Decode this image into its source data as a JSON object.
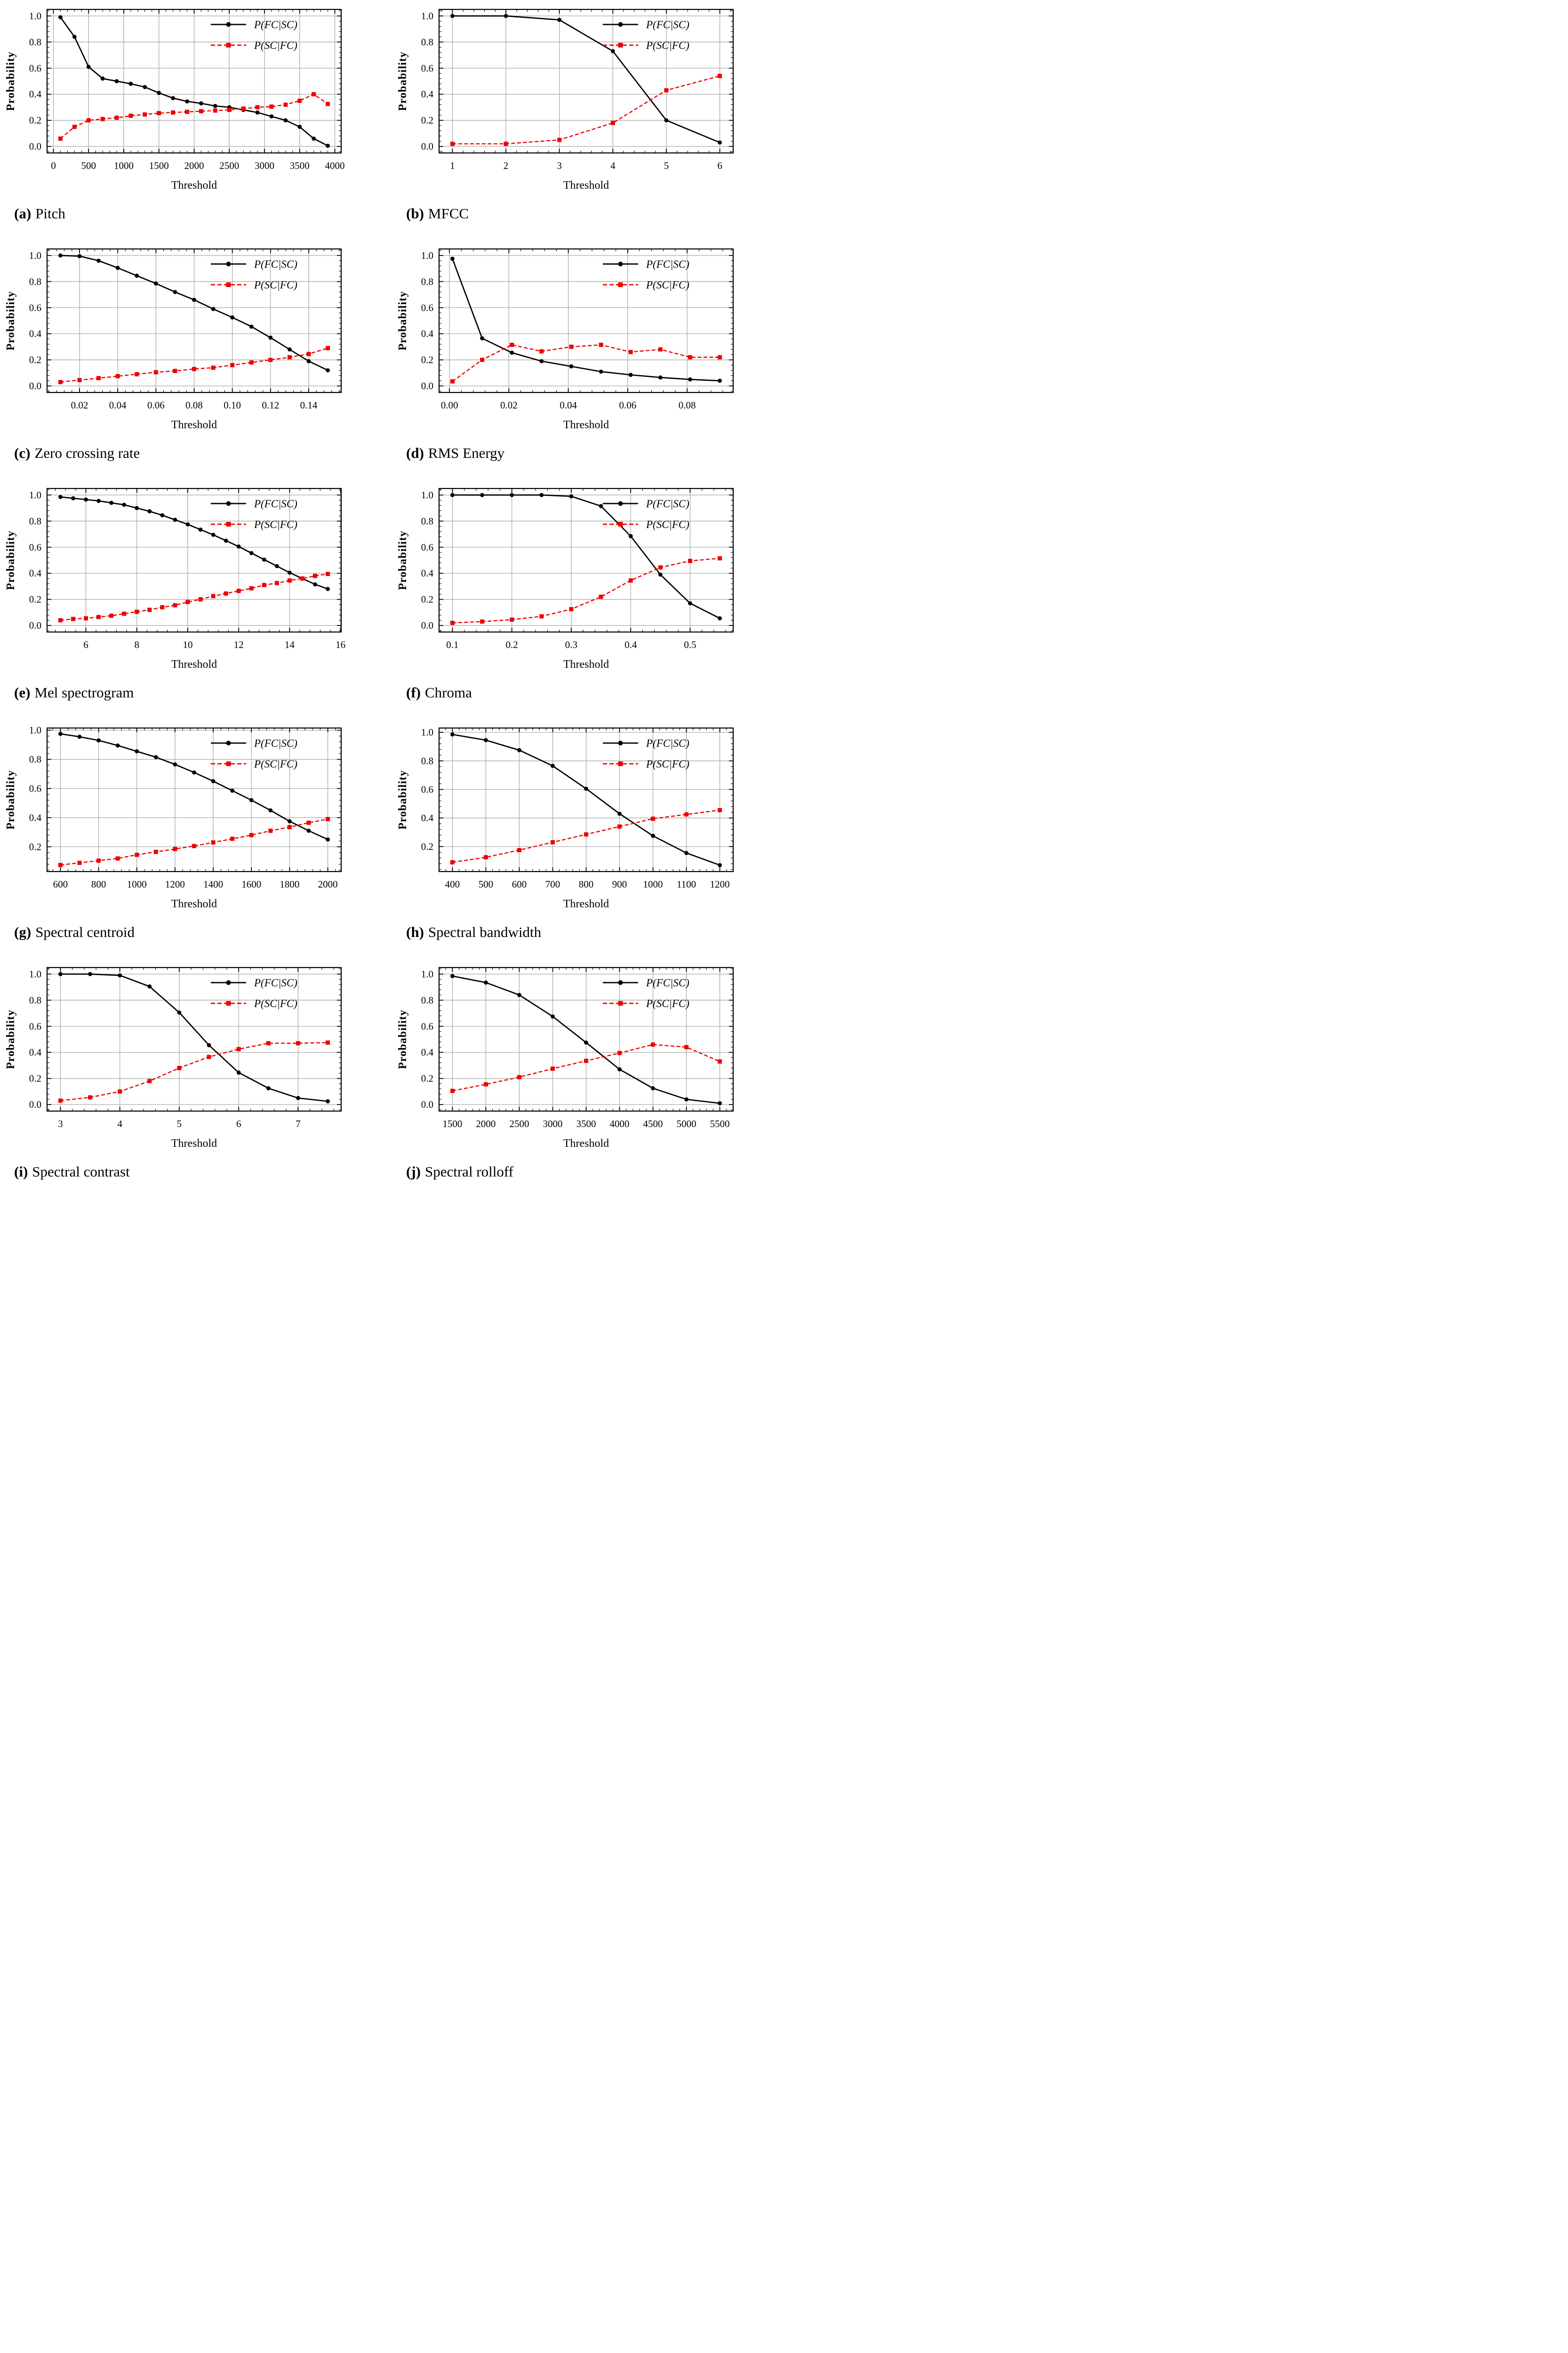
{
  "axes": {
    "xlabel": "Threshold",
    "ylabel": "Probability"
  },
  "legend": {
    "position": "top-right",
    "items": [
      {
        "label": "P(FC|SC)",
        "color": "#000000",
        "line": "solid",
        "marker": "circle"
      },
      {
        "label": "P(SC|FC)",
        "color": "#ee0000",
        "line": "dashed",
        "marker": "square"
      }
    ]
  },
  "style": {
    "grid_color": "#aaaaaa",
    "spine_color": "#000000",
    "background": "#ffffff"
  },
  "chart_data": [
    {
      "panel": "a",
      "caption": "Pitch",
      "type": "line",
      "xlabel": "Threshold",
      "ylabel": "Probability",
      "grid": true,
      "xlim": [
        -90,
        4090
      ],
      "ylim": [
        -0.05,
        1.05
      ],
      "x": [
        100,
        300,
        500,
        700,
        900,
        1100,
        1300,
        1500,
        1700,
        1900,
        2100,
        2300,
        2500,
        2700,
        2900,
        3100,
        3300,
        3500,
        3700,
        3900
      ],
      "series": [
        {
          "name": "P(FC|SC)",
          "values": [
            0.99,
            0.84,
            0.61,
            0.52,
            0.5,
            0.48,
            0.455,
            0.41,
            0.37,
            0.345,
            0.33,
            0.31,
            0.3,
            0.28,
            0.26,
            0.23,
            0.2,
            0.15,
            0.06,
            0.005
          ]
        },
        {
          "name": "P(SC|FC)",
          "values": [
            0.06,
            0.15,
            0.2,
            0.21,
            0.22,
            0.235,
            0.245,
            0.255,
            0.26,
            0.265,
            0.27,
            0.275,
            0.28,
            0.29,
            0.3,
            0.305,
            0.32,
            0.35,
            0.4,
            0.325
          ]
        }
      ],
      "xticks": {
        "values": [
          0,
          500,
          1000,
          1500,
          2000,
          2500,
          3000,
          3500,
          4000
        ],
        "labels": [
          "0",
          "500",
          "1000",
          "1500",
          "2000",
          "2500",
          "3000",
          "3500",
          "4000"
        ]
      },
      "yticks": {
        "values": [
          0,
          0.2,
          0.4,
          0.6,
          0.8,
          1.0
        ],
        "labels": [
          "0.0",
          "0.2",
          "0.4",
          "0.6",
          "0.8",
          "1.0"
        ]
      }
    },
    {
      "panel": "b",
      "caption": "MFCC",
      "type": "line",
      "xlabel": "Threshold",
      "ylabel": "Probability",
      "grid": true,
      "xlim": [
        0.75,
        6.25
      ],
      "ylim": [
        -0.05,
        1.05
      ],
      "x": [
        1,
        2,
        3,
        4,
        5,
        6
      ],
      "series": [
        {
          "name": "P(FC|SC)",
          "values": [
            1.0,
            1.0,
            0.97,
            0.73,
            0.2,
            0.03
          ]
        },
        {
          "name": "P(SC|FC)",
          "values": [
            0.02,
            0.02,
            0.05,
            0.18,
            0.43,
            0.54
          ]
        }
      ],
      "xticks": {
        "values": [
          1,
          2,
          3,
          4,
          5,
          6
        ],
        "labels": [
          "1",
          "2",
          "3",
          "4",
          "5",
          "6"
        ]
      },
      "yticks": {
        "values": [
          0,
          0.2,
          0.4,
          0.6,
          0.8,
          1.0
        ],
        "labels": [
          "0.0",
          "0.2",
          "0.4",
          "0.6",
          "0.8",
          "1.0"
        ]
      }
    },
    {
      "panel": "c",
      "caption": "Zero crossing rate",
      "type": "line",
      "xlabel": "Threshold",
      "ylabel": "Probability",
      "grid": true,
      "xlim": [
        0.003,
        0.157
      ],
      "ylim": [
        -0.05,
        1.05
      ],
      "x": [
        0.01,
        0.02,
        0.03,
        0.04,
        0.05,
        0.06,
        0.07,
        0.08,
        0.09,
        0.1,
        0.11,
        0.12,
        0.13,
        0.14,
        0.15
      ],
      "series": [
        {
          "name": "P(FC|SC)",
          "values": [
            1.0,
            0.995,
            0.96,
            0.905,
            0.845,
            0.785,
            0.72,
            0.66,
            0.59,
            0.525,
            0.455,
            0.37,
            0.28,
            0.19,
            0.12
          ]
        },
        {
          "name": "P(SC|FC)",
          "values": [
            0.03,
            0.045,
            0.06,
            0.075,
            0.09,
            0.105,
            0.115,
            0.13,
            0.14,
            0.16,
            0.18,
            0.2,
            0.22,
            0.245,
            0.29
          ]
        }
      ],
      "xticks": {
        "values": [
          0.02,
          0.04,
          0.06,
          0.08,
          0.1,
          0.12,
          0.14
        ],
        "labels": [
          "0.02",
          "0.04",
          "0.06",
          "0.08",
          "0.10",
          "0.12",
          "0.14"
        ]
      },
      "yticks": {
        "values": [
          0,
          0.2,
          0.4,
          0.6,
          0.8,
          1.0
        ],
        "labels": [
          "0.0",
          "0.2",
          "0.4",
          "0.6",
          "0.8",
          "1.0"
        ]
      }
    },
    {
      "panel": "d",
      "caption": "RMS Energy",
      "type": "line",
      "xlabel": "Threshold",
      "ylabel": "Probability",
      "grid": true,
      "xlim": [
        -0.0035,
        0.0955
      ],
      "ylim": [
        -0.05,
        1.05
      ],
      "x": [
        0.001,
        0.011,
        0.021,
        0.031,
        0.041,
        0.051,
        0.061,
        0.071,
        0.081,
        0.091
      ],
      "series": [
        {
          "name": "P(FC|SC)",
          "values": [
            0.975,
            0.365,
            0.255,
            0.19,
            0.15,
            0.11,
            0.085,
            0.065,
            0.05,
            0.04
          ]
        },
        {
          "name": "P(SC|FC)",
          "values": [
            0.035,
            0.2,
            0.315,
            0.265,
            0.3,
            0.315,
            0.26,
            0.28,
            0.22,
            0.22
          ]
        }
      ],
      "xticks": {
        "values": [
          0.0,
          0.02,
          0.04,
          0.06,
          0.08
        ],
        "labels": [
          "0.00",
          "0.02",
          "0.04",
          "0.06",
          "0.08"
        ]
      },
      "yticks": {
        "values": [
          0,
          0.2,
          0.4,
          0.6,
          0.8,
          1.0
        ],
        "labels": [
          "0.0",
          "0.2",
          "0.4",
          "0.6",
          "0.8",
          "1.0"
        ]
      }
    },
    {
      "panel": "e",
      "caption": "Mel spectrogram",
      "type": "line",
      "xlabel": "Threshold",
      "ylabel": "Probability",
      "grid": true,
      "xlim": [
        4.475,
        16.025
      ],
      "ylim": [
        -0.05,
        1.05
      ],
      "x": [
        5,
        5.5,
        6,
        6.5,
        7,
        7.5,
        8,
        8.5,
        9,
        9.5,
        10,
        10.5,
        11,
        11.5,
        12,
        12.5,
        13,
        13.5,
        14,
        14.5,
        15,
        15.5
      ],
      "series": [
        {
          "name": "P(FC|SC)",
          "values": [
            0.985,
            0.975,
            0.965,
            0.955,
            0.94,
            0.925,
            0.9,
            0.875,
            0.845,
            0.81,
            0.775,
            0.735,
            0.695,
            0.65,
            0.605,
            0.555,
            0.505,
            0.455,
            0.405,
            0.36,
            0.315,
            0.28
          ]
        },
        {
          "name": "P(SC|FC)",
          "values": [
            0.04,
            0.05,
            0.055,
            0.065,
            0.075,
            0.09,
            0.105,
            0.12,
            0.14,
            0.155,
            0.18,
            0.2,
            0.225,
            0.245,
            0.265,
            0.285,
            0.31,
            0.325,
            0.345,
            0.36,
            0.38,
            0.395
          ]
        }
      ],
      "xticks": {
        "values": [
          6,
          8,
          10,
          12,
          14,
          16
        ],
        "labels": [
          "6",
          "8",
          "10",
          "12",
          "14",
          "16"
        ]
      },
      "yticks": {
        "values": [
          0,
          0.2,
          0.4,
          0.6,
          0.8,
          1.0
        ],
        "labels": [
          "0.0",
          "0.2",
          "0.4",
          "0.6",
          "0.8",
          "1.0"
        ]
      }
    },
    {
      "panel": "f",
      "caption": "Chroma",
      "type": "line",
      "xlabel": "Threshold",
      "ylabel": "Probability",
      "grid": true,
      "xlim": [
        0.0775,
        0.5725
      ],
      "ylim": [
        -0.05,
        1.05
      ],
      "x": [
        0.1,
        0.15,
        0.2,
        0.25,
        0.3,
        0.35,
        0.4,
        0.45,
        0.5,
        0.55
      ],
      "series": [
        {
          "name": "P(FC|SC)",
          "values": [
            1.0,
            1.0,
            1.0,
            1.0,
            0.99,
            0.915,
            0.685,
            0.39,
            0.17,
            0.055
          ]
        },
        {
          "name": "P(SC|FC)",
          "values": [
            0.02,
            0.03,
            0.045,
            0.07,
            0.125,
            0.22,
            0.345,
            0.445,
            0.495,
            0.515
          ]
        }
      ],
      "xticks": {
        "values": [
          0.1,
          0.2,
          0.3,
          0.4,
          0.5
        ],
        "labels": [
          "0.1",
          "0.2",
          "0.3",
          "0.4",
          "0.5"
        ]
      },
      "yticks": {
        "values": [
          0,
          0.2,
          0.4,
          0.6,
          0.8,
          1.0
        ],
        "labels": [
          "0.0",
          "0.2",
          "0.4",
          "0.6",
          "0.8",
          "1.0"
        ]
      }
    },
    {
      "panel": "g",
      "caption": "Spectral centroid",
      "type": "line",
      "xlabel": "Threshold",
      "ylabel": "Probability",
      "grid": true,
      "xlim": [
        530,
        2070
      ],
      "ylim": [
        0.03,
        1.015
      ],
      "x": [
        600,
        700,
        800,
        900,
        1000,
        1100,
        1200,
        1300,
        1400,
        1500,
        1600,
        1700,
        1800,
        1900,
        2000
      ],
      "series": [
        {
          "name": "P(FC|SC)",
          "values": [
            0.975,
            0.955,
            0.93,
            0.895,
            0.855,
            0.815,
            0.765,
            0.71,
            0.65,
            0.585,
            0.52,
            0.45,
            0.375,
            0.31,
            0.25
          ]
        },
        {
          "name": "P(SC|FC)",
          "values": [
            0.075,
            0.09,
            0.105,
            0.12,
            0.145,
            0.165,
            0.185,
            0.205,
            0.23,
            0.255,
            0.28,
            0.31,
            0.335,
            0.365,
            0.39
          ]
        }
      ],
      "xticks": {
        "values": [
          600,
          800,
          1000,
          1200,
          1400,
          1600,
          1800,
          2000
        ],
        "labels": [
          "600",
          "800",
          "1000",
          "1200",
          "1400",
          "1600",
          "1800",
          "2000"
        ]
      },
      "yticks": {
        "values": [
          0.2,
          0.4,
          0.6,
          0.8,
          1.0
        ],
        "labels": [
          "0.2",
          "0.4",
          "0.6",
          "0.8",
          "1.0"
        ]
      }
    },
    {
      "panel": "h",
      "caption": "Spectral bandwidth",
      "type": "line",
      "xlabel": "Threshold",
      "ylabel": "Probability",
      "grid": true,
      "xlim": [
        360,
        1240
      ],
      "ylim": [
        0.025,
        1.03
      ],
      "x": [
        400,
        500,
        600,
        700,
        800,
        900,
        1000,
        1100,
        1200
      ],
      "series": [
        {
          "name": "P(FC|SC)",
          "values": [
            0.985,
            0.945,
            0.875,
            0.765,
            0.605,
            0.43,
            0.275,
            0.155,
            0.07
          ]
        },
        {
          "name": "P(SC|FC)",
          "values": [
            0.09,
            0.125,
            0.175,
            0.23,
            0.285,
            0.34,
            0.395,
            0.425,
            0.455
          ]
        }
      ],
      "xticks": {
        "values": [
          400,
          500,
          600,
          700,
          800,
          900,
          1000,
          1100,
          1200
        ],
        "labels": [
          "400",
          "500",
          "600",
          "700",
          "800",
          "900",
          "1000",
          "1100",
          "1200"
        ]
      },
      "yticks": {
        "values": [
          0.2,
          0.4,
          0.6,
          0.8,
          1.0
        ],
        "labels": [
          "0.2",
          "0.4",
          "0.6",
          "0.8",
          "1.0"
        ]
      }
    },
    {
      "panel": "i",
      "caption": "Spectral contrast",
      "type": "line",
      "xlabel": "Threshold",
      "ylabel": "Probability",
      "grid": true,
      "xlim": [
        2.775,
        7.725
      ],
      "ylim": [
        -0.05,
        1.05
      ],
      "x": [
        3,
        3.5,
        4,
        4.5,
        5,
        5.5,
        6,
        6.5,
        7,
        7.5
      ],
      "series": [
        {
          "name": "P(FC|SC)",
          "values": [
            1.0,
            1.0,
            0.99,
            0.905,
            0.705,
            0.455,
            0.245,
            0.125,
            0.05,
            0.025
          ]
        },
        {
          "name": "P(SC|FC)",
          "values": [
            0.03,
            0.055,
            0.1,
            0.18,
            0.28,
            0.365,
            0.425,
            0.47,
            0.47,
            0.475
          ]
        }
      ],
      "xticks": {
        "values": [
          3,
          4,
          5,
          6,
          7
        ],
        "labels": [
          "3",
          "4",
          "5",
          "6",
          "7"
        ]
      },
      "yticks": {
        "values": [
          0,
          0.2,
          0.4,
          0.6,
          0.8,
          1.0
        ],
        "labels": [
          "0.0",
          "0.2",
          "0.4",
          "0.6",
          "0.8",
          "1.0"
        ]
      }
    },
    {
      "panel": "j",
      "caption": "Spectral rolloff",
      "type": "line",
      "xlabel": "Threshold",
      "ylabel": "Probability",
      "grid": true,
      "xlim": [
        1300,
        5700
      ],
      "ylim": [
        -0.05,
        1.05
      ],
      "x": [
        1500,
        2000,
        2500,
        3000,
        3500,
        4000,
        4500,
        5000,
        5500
      ],
      "series": [
        {
          "name": "P(FC|SC)",
          "values": [
            0.985,
            0.935,
            0.84,
            0.675,
            0.475,
            0.27,
            0.125,
            0.04,
            0.01
          ]
        },
        {
          "name": "P(SC|FC)",
          "values": [
            0.105,
            0.155,
            0.21,
            0.275,
            0.335,
            0.395,
            0.46,
            0.44,
            0.33
          ]
        }
      ],
      "xticks": {
        "values": [
          1500,
          2000,
          2500,
          3000,
          3500,
          4000,
          4500,
          5000,
          5500
        ],
        "labels": [
          "1500",
          "2000",
          "2500",
          "3000",
          "3500",
          "4000",
          "4500",
          "5000",
          "5500"
        ]
      },
      "yticks": {
        "values": [
          0,
          0.2,
          0.4,
          0.6,
          0.8,
          1.0
        ],
        "labels": [
          "0.0",
          "0.2",
          "0.4",
          "0.6",
          "0.8",
          "1.0"
        ]
      }
    }
  ]
}
